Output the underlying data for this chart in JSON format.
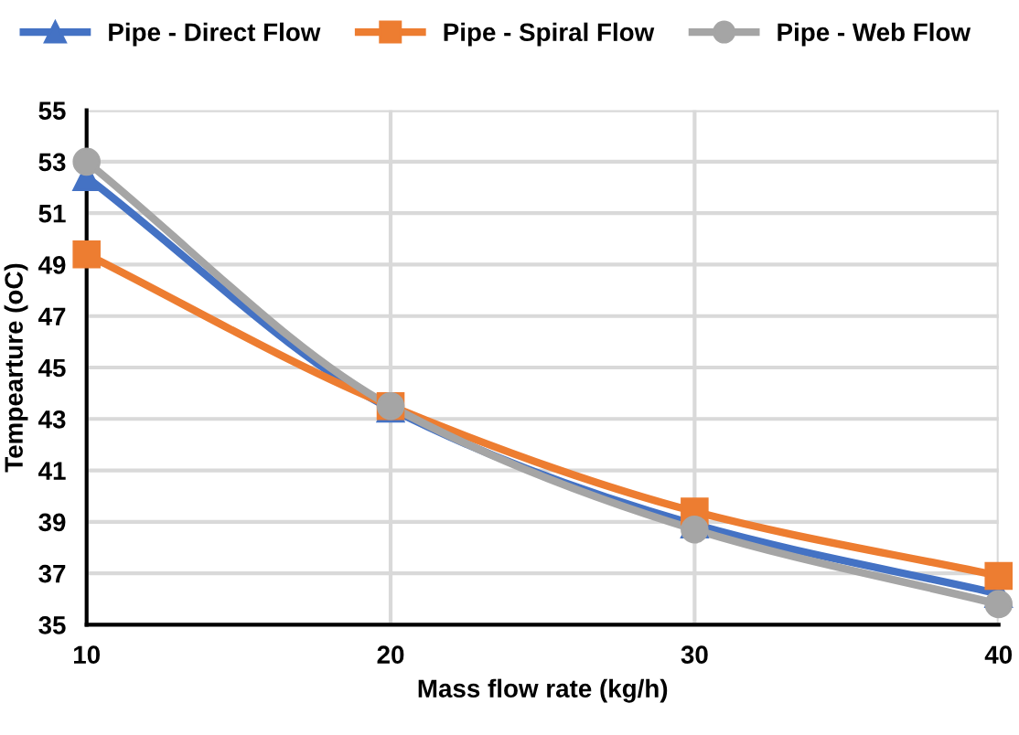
{
  "chart_data": {
    "type": "line",
    "xlabel": "Mass flow rate (kg/h)",
    "ylabel": "Tempearture (oC)",
    "x": [
      10,
      20,
      30,
      40
    ],
    "xlim": [
      10,
      40
    ],
    "xticks": [
      10,
      20,
      30,
      40
    ],
    "ylim": [
      35,
      55
    ],
    "yticks": [
      35,
      37,
      39,
      41,
      43,
      45,
      47,
      49,
      51,
      53,
      55
    ],
    "grid": true,
    "legend": "top",
    "series": [
      {
        "name": "Pipe - Direct Flow",
        "color": "#4472c4",
        "marker": "triangle",
        "values": [
          52.4,
          43.4,
          38.9,
          36.2
        ]
      },
      {
        "name": "Pipe - Spiral Flow",
        "color": "#ed7d31",
        "marker": "square",
        "values": [
          49.4,
          43.5,
          39.4,
          36.9
        ]
      },
      {
        "name": "Pipe - Web Flow",
        "color": "#a5a5a5",
        "marker": "circle",
        "values": [
          53.0,
          43.5,
          38.7,
          35.8
        ]
      }
    ]
  }
}
